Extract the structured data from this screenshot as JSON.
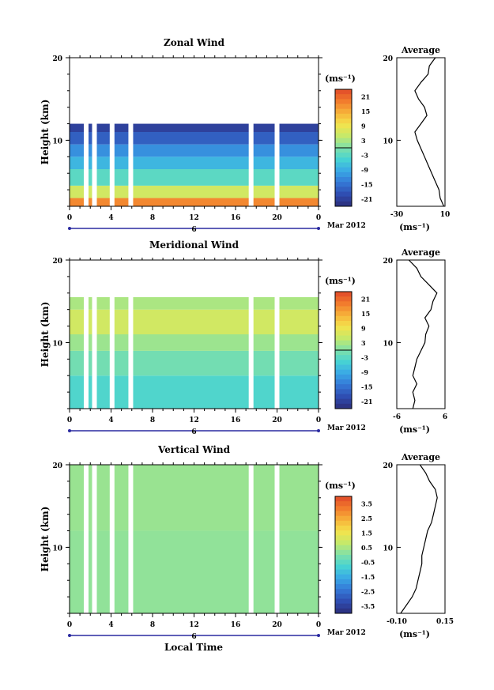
{
  "figure": {
    "xlabel": "Local Time",
    "date_label": "Mar 2012"
  },
  "chart_data": [
    {
      "type": "heatmap",
      "title": "Zonal Wind",
      "ylabel": "Height (km)",
      "xlim": [
        0,
        24
      ],
      "ylim": [
        2,
        20
      ],
      "x_ticks": [
        "0",
        "4",
        "8",
        "12",
        "16",
        "20",
        "0"
      ],
      "y_ticks": [
        "10",
        "20"
      ],
      "day_label": "6",
      "colorbar": {
        "unit": "(ms⁻¹)",
        "labels": [
          "21",
          "15",
          "9",
          "3",
          "-3",
          "-9",
          "-15",
          "-21"
        ],
        "zero_line_at": "0",
        "range": [
          -24,
          24
        ]
      },
      "profile_gaps_hours": [
        1.6,
        2.4,
        4.1,
        5.9,
        17.5,
        20.0
      ],
      "layers_m_s": [
        {
          "z_from": 2,
          "z_to": 3,
          "u": 18
        },
        {
          "z_from": 3,
          "z_to": 4.5,
          "u": 6
        },
        {
          "z_from": 4.5,
          "z_to": 6.5,
          "u": -3
        },
        {
          "z_from": 6.5,
          "z_to": 8,
          "u": -8
        },
        {
          "z_from": 8,
          "z_to": 9.5,
          "u": -12
        },
        {
          "z_from": 9.5,
          "z_to": 11,
          "u": -17
        },
        {
          "z_from": 11,
          "z_to": 12,
          "u": -21
        }
      ],
      "average": {
        "title": "Average",
        "xlabel": "(ms⁻¹)",
        "xlim": [
          -30,
          10
        ],
        "x_ticks": [
          "-30",
          "10"
        ],
        "y_ticks": [
          "10",
          "20"
        ],
        "z": [
          2,
          3,
          4,
          5,
          6,
          7,
          8,
          9,
          10,
          11,
          12,
          13,
          14,
          15,
          16,
          17,
          18,
          19,
          20
        ],
        "u": [
          9,
          6,
          5,
          2,
          -1,
          -4,
          -7,
          -10,
          -13,
          -15,
          -10,
          -5,
          -7,
          -12,
          -15,
          -10,
          -4,
          -3,
          2
        ]
      }
    },
    {
      "type": "heatmap",
      "title": "Meridional Wind",
      "ylabel": "Height (km)",
      "xlim": [
        0,
        24
      ],
      "ylim": [
        2,
        20
      ],
      "x_ticks": [
        "0",
        "4",
        "8",
        "12",
        "16",
        "20",
        "0"
      ],
      "y_ticks": [
        "10",
        "20"
      ],
      "day_label": "6",
      "colorbar": {
        "unit": "(ms⁻¹)",
        "labels": [
          "21",
          "15",
          "9",
          "3",
          "-3",
          "-9",
          "-15",
          "-21"
        ],
        "zero_line_at": "0",
        "range": [
          -24,
          24
        ]
      },
      "profile_gaps_hours": [
        1.6,
        2.4,
        4.1,
        5.9,
        17.5,
        20.0
      ],
      "layers_m_s": [
        {
          "z_from": 2,
          "z_to": 6,
          "u": -4
        },
        {
          "z_from": 6,
          "z_to": 9,
          "u": -1
        },
        {
          "z_from": 9,
          "z_to": 11,
          "u": 2
        },
        {
          "z_from": 11,
          "z_to": 14,
          "u": 6
        },
        {
          "z_from": 14,
          "z_to": 15.5,
          "u": 3
        }
      ],
      "average": {
        "title": "Average",
        "xlabel": "(ms⁻¹)",
        "xlim": [
          -6,
          6
        ],
        "x_ticks": [
          "-6",
          "6"
        ],
        "y_ticks": [
          "10",
          "20"
        ],
        "z": [
          2,
          3,
          4,
          5,
          6,
          7,
          8,
          9,
          10,
          11,
          12,
          13,
          14,
          15,
          16,
          17,
          18,
          19,
          20
        ],
        "u": [
          -2,
          -1.5,
          -2,
          -1,
          -2,
          -1.5,
          -1,
          0,
          1,
          1.2,
          2,
          1,
          2.5,
          3,
          4,
          2,
          0,
          -1,
          -3
        ]
      }
    },
    {
      "type": "heatmap",
      "title": "Vertical Wind",
      "ylabel": "Height (km)",
      "xlim": [
        0,
        24
      ],
      "ylim": [
        2,
        20
      ],
      "x_ticks": [
        "0",
        "4",
        "8",
        "12",
        "16",
        "20",
        "0"
      ],
      "y_ticks": [
        "10",
        "20"
      ],
      "day_label": "6",
      "colorbar": {
        "unit": "(ms⁻¹)",
        "labels": [
          "3.5",
          "2.5",
          "1.5",
          "0.5",
          "-0.5",
          "-1.5",
          "-2.5",
          "-3.5"
        ],
        "zero_line_at": "",
        "range": [
          -4,
          4
        ]
      },
      "profile_gaps_hours": [
        1.6,
        2.4,
        4.1,
        5.9,
        17.5,
        20.0
      ],
      "layers_m_s": [
        {
          "z_from": 2,
          "z_to": 12,
          "u": 0.2
        },
        {
          "z_from": 12,
          "z_to": 20,
          "u": 0.3
        }
      ],
      "average": {
        "title": "Average",
        "xlabel": "(ms⁻¹)",
        "xlim": [
          -0.1,
          0.15
        ],
        "x_ticks": [
          "-0.10",
          "0.15"
        ],
        "y_ticks": [
          "10",
          "20"
        ],
        "z": [
          2,
          3,
          4,
          5,
          6,
          7,
          8,
          9,
          10,
          11,
          12,
          13,
          14,
          15,
          16,
          17,
          18,
          19,
          20
        ],
        "u": [
          -0.08,
          -0.05,
          -0.02,
          0.0,
          0.01,
          0.02,
          0.03,
          0.03,
          0.04,
          0.05,
          0.06,
          0.08,
          0.09,
          0.1,
          0.11,
          0.1,
          0.07,
          0.05,
          0.02
        ]
      }
    }
  ]
}
